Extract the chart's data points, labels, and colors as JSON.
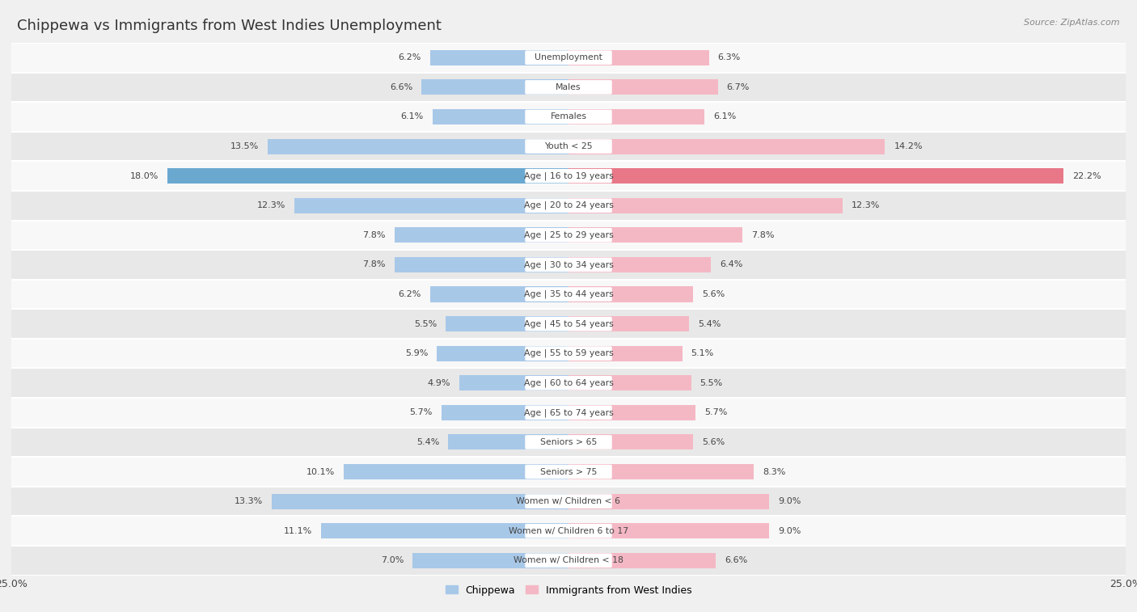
{
  "title": "Chippewa vs Immigrants from West Indies Unemployment",
  "source": "Source: ZipAtlas.com",
  "categories": [
    "Unemployment",
    "Males",
    "Females",
    "Youth < 25",
    "Age | 16 to 19 years",
    "Age | 20 to 24 years",
    "Age | 25 to 29 years",
    "Age | 30 to 34 years",
    "Age | 35 to 44 years",
    "Age | 45 to 54 years",
    "Age | 55 to 59 years",
    "Age | 60 to 64 years",
    "Age | 65 to 74 years",
    "Seniors > 65",
    "Seniors > 75",
    "Women w/ Children < 6",
    "Women w/ Children 6 to 17",
    "Women w/ Children < 18"
  ],
  "chippewa": [
    6.2,
    6.6,
    6.1,
    13.5,
    18.0,
    12.3,
    7.8,
    7.8,
    6.2,
    5.5,
    5.9,
    4.9,
    5.7,
    5.4,
    10.1,
    13.3,
    11.1,
    7.0
  ],
  "west_indies": [
    6.3,
    6.7,
    6.1,
    14.2,
    22.2,
    12.3,
    7.8,
    6.4,
    5.6,
    5.4,
    5.1,
    5.5,
    5.7,
    5.6,
    8.3,
    9.0,
    9.0,
    6.6
  ],
  "chippewa_color": "#a8c8e8",
  "west_indies_color": "#f4b8c4",
  "highlight_chippewa_color": "#6aa8d0",
  "highlight_west_indies_color": "#e87888",
  "background_color": "#f0f0f0",
  "row_color_light": "#f8f8f8",
  "row_color_dark": "#e8e8e8",
  "xlim": 25.0,
  "legend_chippewa": "Chippewa",
  "legend_west_indies": "Immigrants from West Indies",
  "highlighted_row": "Age | 16 to 19 years"
}
